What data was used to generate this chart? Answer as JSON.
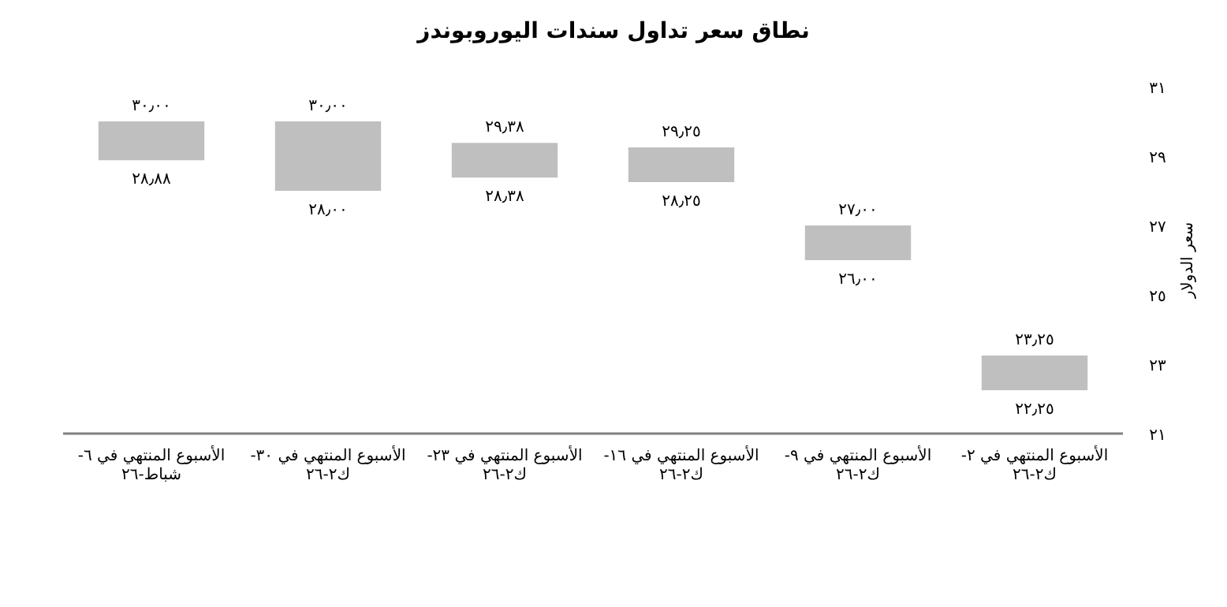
{
  "chart_data": {
    "type": "bar",
    "title": "نطاق سعر تداول سندات اليوروبوندز",
    "ylabel": "سعر الدولار",
    "categories": [
      "الأسبوع المنتهي في ٦-شباط-٢٦",
      "الأسبوع المنتهي في ٣٠-ك٢-٢٦",
      "الأسبوع المنتهي في ٢٣-ك٢-٢٦",
      "الأسبوع المنتهي في ١٦-ك٢-٢٦",
      "الأسبوع المنتهي في ٩-ك٢-٢٦",
      "الأسبوع المنتهي في ٢-ك٢-٢٦"
    ],
    "base": [
      28.88,
      28.0,
      28.38,
      28.25,
      26.0,
      22.25
    ],
    "values": [
      1.12,
      2.0,
      1.0,
      1.0,
      1.0,
      1.0
    ],
    "color": "#bfbfbf",
    "ylim": [
      21,
      31
    ],
    "yticks": [
      {
        "value": 21,
        "label": "٢١"
      },
      {
        "value": 23,
        "label": "٢٣"
      },
      {
        "value": 25,
        "label": "٢٥"
      },
      {
        "value": 27,
        "label": "٢٧"
      },
      {
        "value": 29,
        "label": "٢٩"
      },
      {
        "value": 31,
        "label": "٣١"
      }
    ],
    "annotations": [
      {
        "text": "٣٠٫٠٠",
        "x": "الأسبوع المنتهي في ٦-شباط-٢٦",
        "y": 30.0
      },
      {
        "text": "٢٨٫٨٨",
        "x": "الأسبوع المنتهي في ٦-شباط-٢٦",
        "y": 28.88
      },
      {
        "text": "٣٠٫٠٠",
        "x": "الأسبوع المنتهي في ٣٠-ك٢-٢٦",
        "y": 30.0
      },
      {
        "text": "٢٨٫٠٠",
        "x": "الأسبوع المنتهي في ٣٠-ك٢-٢٦",
        "y": 28.0
      },
      {
        "text": "٢٩٫٣٨",
        "x": "الأسبوع المنتهي في ٢٣-ك٢-٢٦",
        "y": 29.38
      },
      {
        "text": "٢٨٫٣٨",
        "x": "الأسبوع المنتهي في ٢٣-ك٢-٢٦",
        "y": 28.38
      },
      {
        "text": "٢٩٫٢٥",
        "x": "الأسبوع المنتهي في ١٦-ك٢-٢٦",
        "y": 29.25
      },
      {
        "text": "٢٨٫٢٥",
        "x": "الأسبوع المنتهي في ١٦-ك٢-٢٦",
        "y": 28.25
      },
      {
        "text": "٢٧٫٠٠",
        "x": "الأسبوع المنتهي في ٩-ك٢-٢٦",
        "y": 27.0
      },
      {
        "text": "٢٦٫٠٠",
        "x": "الأسبوع المنتهي في ٩-ك٢-٢٦",
        "y": 26.0
      },
      {
        "text": "٢٣٫٢٥",
        "x": "الأسبوع المنتهي في ٢-ك٢-٢٦",
        "y": 23.25
      },
      {
        "text": "٢٢٫٢٥",
        "x": "الأسبوع المنتهي في ٢-ك٢-٢٦",
        "y": 22.25
      }
    ]
  }
}
